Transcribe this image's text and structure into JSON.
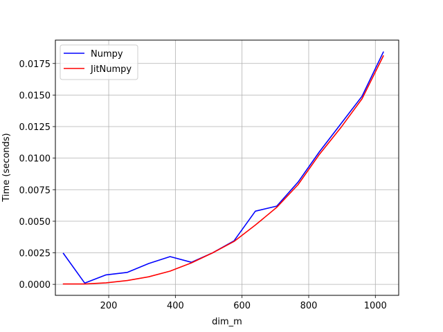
{
  "chart_data": {
    "type": "line",
    "title": "",
    "xlabel": "dim_m",
    "ylabel": "Time (seconds)",
    "xlim": [
      40,
      1070
    ],
    "ylim": [
      -0.00087,
      0.01935
    ],
    "xticks": [
      200,
      400,
      600,
      800,
      1000
    ],
    "xtick_labels": [
      "200",
      "400",
      "600",
      "800",
      "1000"
    ],
    "yticks": [
      0.0,
      0.0025,
      0.005,
      0.0075,
      0.01,
      0.0125,
      0.015,
      0.0175
    ],
    "ytick_labels": [
      "0.0000",
      "0.0025",
      "0.0050",
      "0.0075",
      "0.0100",
      "0.0125",
      "0.0150",
      "0.0175"
    ],
    "grid": true,
    "legend_position": "top-left",
    "x": [
      64,
      128,
      192,
      256,
      320,
      384,
      448,
      512,
      576,
      640,
      704,
      768,
      832,
      896,
      960,
      1024
    ],
    "series": [
      {
        "name": "Numpy",
        "color": "#0000ff",
        "values": [
          0.00245,
          0.0001,
          0.00075,
          0.00095,
          0.00165,
          0.0022,
          0.00175,
          0.0025,
          0.00345,
          0.0058,
          0.0062,
          0.0081,
          0.0105,
          0.0127,
          0.0149,
          0.0184
        ]
      },
      {
        "name": "JitNumpy",
        "color": "#ff0000",
        "values": [
          3e-05,
          3e-05,
          0.00012,
          0.0003,
          0.0006,
          0.00105,
          0.0017,
          0.0025,
          0.0034,
          0.0047,
          0.0061,
          0.0079,
          0.0103,
          0.0124,
          0.0147,
          0.0181
        ]
      }
    ]
  }
}
